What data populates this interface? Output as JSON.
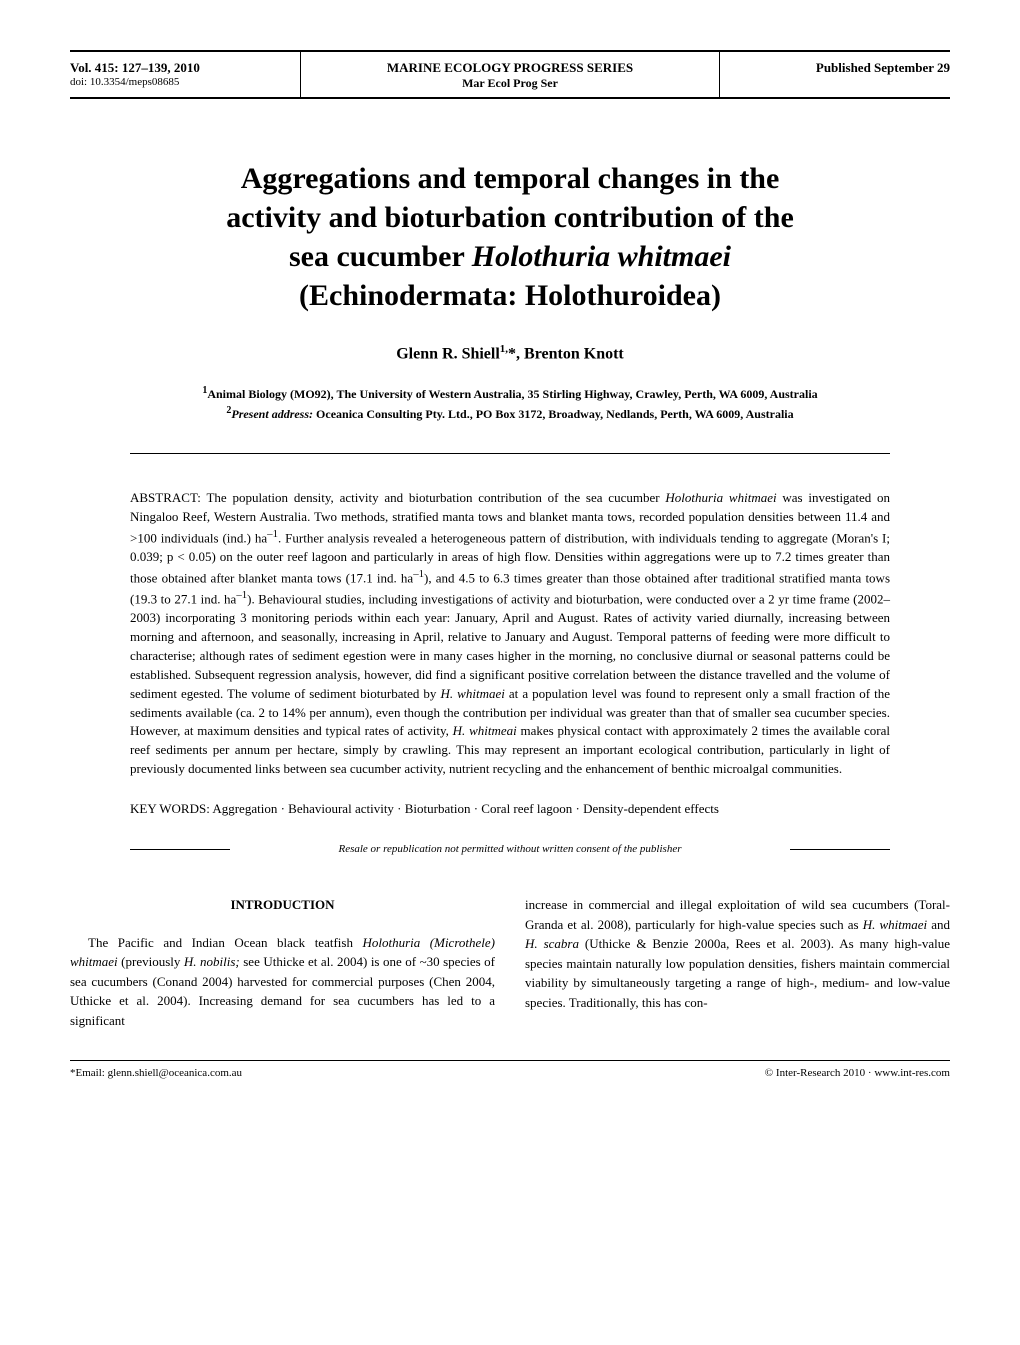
{
  "header": {
    "volume": "Vol. 415: 127–139, 2010",
    "doi": "doi: 10.3354/meps08685",
    "series_title": "MARINE ECOLOGY PROGRESS SERIES",
    "series_subtitle": "Mar Ecol Prog Ser",
    "published": "Published September 29"
  },
  "title": {
    "line1": "Aggregations and temporal changes in the",
    "line2": "activity and bioturbation contribution of the",
    "line3": "sea cucumber ",
    "species": "Holothuria whitmaei",
    "line4": "(Echinodermata: Holothuroidea)"
  },
  "authors": "Glenn R. Shiell",
  "authors_sup1": "1,",
  "authors_ast": "*",
  "authors_sep": ", Brenton Knott",
  "affiliations": {
    "aff1_sup": "1",
    "aff1": "Animal Biology (MO92), The University of Western Australia, 35 Stirling Highway, Crawley, Perth, WA 6009, Australia",
    "aff2_sup": "2",
    "aff2_label": "Present address:",
    "aff2": " Oceanica Consulting Pty. Ltd., PO Box 3172, Broadway, Nedlands, Perth, WA 6009, Australia"
  },
  "abstract": {
    "label": "ABSTRACT: ",
    "text1": "The population density, activity and bioturbation contribution of the sea cucumber ",
    "sp1": "Holothuria whitmaei",
    "text2": " was investigated on Ningaloo Reef, Western Australia. Two methods, stratified manta tows and blanket manta tows, recorded population densities between 11.4 and >100 individuals (ind.) ha",
    "sup1": "–1",
    "text3": ". Further analysis revealed a heterogeneous pattern of distribution, with individuals tending to aggregate (Moran's I; 0.039; p < 0.05) on the outer reef lagoon and particularly in areas of high flow. Densities within aggregations were up to 7.2 times greater than those obtained after blanket manta tows (17.1 ind. ha",
    "sup2": "–1",
    "text4": "), and 4.5 to 6.3 times greater than those obtained after traditional stratified manta tows (19.3 to 27.1 ind. ha",
    "sup3": "–1",
    "text5": "). Behavioural studies, including investigations of activity and bioturbation, were conducted over a 2 yr time frame (2002–2003) incorporating 3 monitoring periods within each year: January, April and August. Rates of activity varied diurnally, increasing between morning and afternoon, and seasonally, increasing in April, relative to January and August. Temporal patterns of feeding were more difficult to characterise; although rates of sediment egestion were in many cases higher in the morning, no conclusive diurnal or seasonal patterns could be established. Subsequent regression analysis, however, did find a significant positive correlation between the distance travelled and the volume of sediment egested. The volume of sediment bioturbated by ",
    "sp2": "H. whitmaei",
    "text6": " at a population level was found to represent only a small fraction of the sediments available (ca. 2 to 14% per annum), even though the contribution per individual was greater than that of smaller sea cucumber species. However, at maximum densities and typical rates of activity, ",
    "sp3": "H. whitmeai",
    "text7": " makes physical contact with approximately 2 times the available coral reef sediments per annum per hectare, simply by crawling. This may represent an important ecological contribution, particularly in light of previously documented links between sea cucumber activity, nutrient recycling and the enhancement of benthic microalgal communities."
  },
  "keywords": {
    "label": "KEY WORDS: ",
    "text": "Aggregation · Behavioural activity · Bioturbation · Coral reef lagoon · Density-dependent effects"
  },
  "resale": "Resale or republication not permitted without written consent of the publisher",
  "intro": {
    "heading": "INTRODUCTION",
    "left_para": "The Pacific and Indian Ocean black teatfish ",
    "sp1": "Holothuria",
    "sp2": "(Microthele)",
    "sp3": " whitmaei",
    "left_cont1": " (previously ",
    "sp4": "H. nobilis;",
    "left_cont2": " see Uthicke et al. 2004) is one of ~30 species of sea cucumbers (Conand 2004) harvested for commercial purposes (Chen 2004, Uthicke et al. 2004). Increasing demand for sea cucumbers has led to a significant",
    "right_para1": "increase in commercial and illegal exploitation of wild sea cucumbers (Toral-Granda et al. 2008), particularly for high-value species such as ",
    "sp5": "H. whitmaei",
    "right_cont1": " and ",
    "sp6": "H. scabra",
    "right_cont2": " (Uthicke & Benzie 2000a, Rees et al. 2003). As many high-value species maintain naturally low population densities, fishers maintain commercial viability by simultaneously targeting a range of high-, medium- and low-value species. Traditionally, this has con-"
  },
  "footer": {
    "email": "*Email: glenn.shiell@oceanica.com.au",
    "copyright": "© Inter-Research 2010 · www.int-res.com"
  }
}
